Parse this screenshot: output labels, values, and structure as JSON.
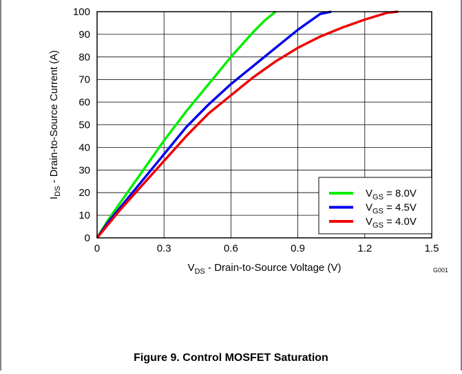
{
  "chart_data": {
    "type": "line",
    "xlabel": {
      "main": "V",
      "sub": "DS",
      "rest": " - Drain-to-Source Voltage (V)"
    },
    "ylabel": {
      "main": "I",
      "sub": "DS",
      "rest": " - Drain-to-Source Current (A)"
    },
    "xlim": [
      0,
      1.5
    ],
    "ylim": [
      0,
      100
    ],
    "xticks": [
      0,
      0.3,
      0.6,
      0.9,
      1.2,
      1.5
    ],
    "xtick_labels": [
      "0",
      "0.3",
      "0.6",
      "0.9",
      "1.2",
      "1.5"
    ],
    "yticks": [
      0,
      10,
      20,
      30,
      40,
      50,
      60,
      70,
      80,
      90,
      100
    ],
    "ytick_labels": [
      "0",
      "10",
      "20",
      "30",
      "40",
      "50",
      "60",
      "70",
      "80",
      "90",
      "100"
    ],
    "grid": true,
    "legend_position": "bottom-right",
    "series": [
      {
        "name": "V_GS = 8.0V",
        "label_main": "V",
        "label_sub": "GS",
        "label_rest": " = 8.0V",
        "color": "#00ee00",
        "x": [
          0,
          0.05,
          0.1,
          0.15,
          0.2,
          0.25,
          0.3,
          0.4,
          0.5,
          0.6,
          0.7,
          0.75,
          0.8
        ],
        "y": [
          0,
          8,
          15,
          22,
          29,
          36,
          43,
          56,
          68,
          80,
          91,
          96,
          100
        ]
      },
      {
        "name": "V_GS = 4.5V",
        "label_main": "V",
        "label_sub": "GS",
        "label_rest": " = 4.5V",
        "color": "#0000ee",
        "x": [
          0,
          0.05,
          0.1,
          0.2,
          0.3,
          0.4,
          0.5,
          0.6,
          0.7,
          0.8,
          0.9,
          1.0,
          1.05
        ],
        "y": [
          0,
          7,
          13,
          25,
          37,
          49,
          59,
          68,
          76,
          84,
          92,
          99,
          100
        ]
      },
      {
        "name": "V_GS = 4.0V",
        "label_main": "V",
        "label_sub": "GS",
        "label_rest": " = 4.0V",
        "color": "#ee0000",
        "x": [
          0,
          0.05,
          0.1,
          0.2,
          0.3,
          0.4,
          0.5,
          0.6,
          0.7,
          0.8,
          0.9,
          1.0,
          1.1,
          1.2,
          1.3,
          1.35
        ],
        "y": [
          0,
          6,
          12,
          23,
          34,
          45,
          55,
          63,
          71,
          78,
          84,
          89,
          93,
          96.5,
          99.5,
          100
        ]
      }
    ]
  },
  "code_label": "G001",
  "caption": "Figure 9.  Control MOSFET Saturation"
}
